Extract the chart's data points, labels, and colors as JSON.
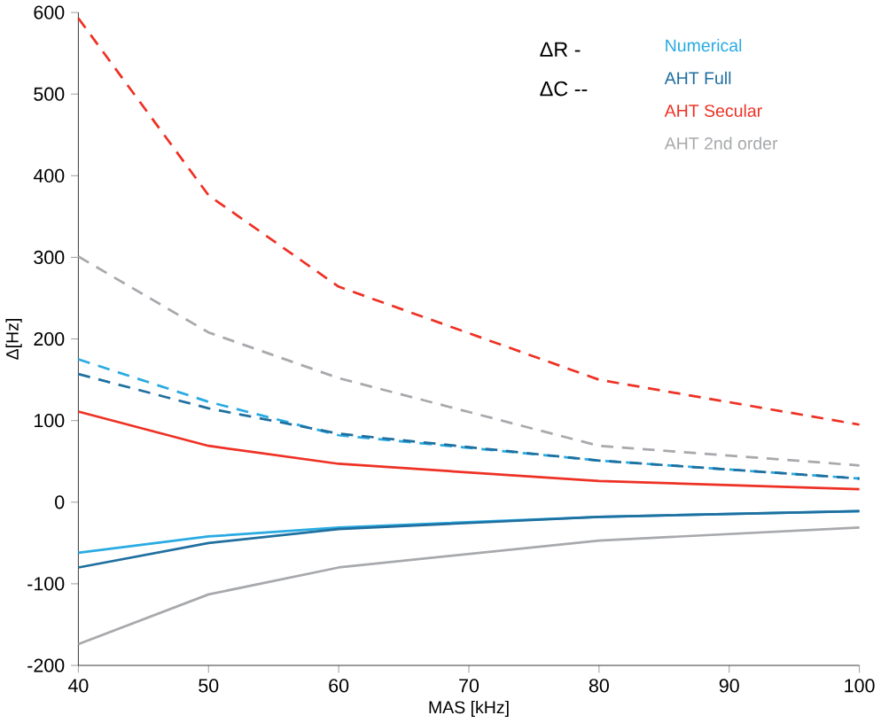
{
  "chart_data": {
    "type": "line",
    "xlabel": "MAS [kHz]",
    "ylabel": "Δ[Hz]",
    "x": [
      40,
      50,
      60,
      80,
      100
    ],
    "xlim": [
      40,
      100
    ],
    "xticks": [
      40,
      50,
      60,
      70,
      80,
      90,
      100
    ],
    "ylim": [
      -200,
      600
    ],
    "yticks": [
      -200,
      -100,
      0,
      100,
      200,
      300,
      400,
      500,
      600
    ],
    "grid": false,
    "legend": "top right",
    "marker": "none",
    "annotations": [
      "ΔR -",
      "ΔC --"
    ],
    "series": [
      {
        "name": "Numerical",
        "color": "#29abe2",
        "line_style": "solid",
        "values": [
          -62,
          -42,
          -31,
          -18,
          -11
        ]
      },
      {
        "name": "AHT Full",
        "color": "#1f6f9f",
        "line_style": "solid",
        "values": [
          -80,
          -50,
          -33,
          -18,
          -11
        ]
      },
      {
        "name": "AHT Secular",
        "color": "#ee3124",
        "line_style": "solid",
        "values": [
          111,
          69,
          47,
          26,
          16
        ]
      },
      {
        "name": "AHT 2nd order",
        "color": "#a7a9ac",
        "line_style": "solid",
        "values": [
          -174,
          -113,
          -80,
          -47,
          -31
        ]
      },
      {
        "color": "#29abe2",
        "line_style": "dashed",
        "values": [
          175,
          123,
          82,
          51,
          29
        ]
      },
      {
        "color": "#1f6f9f",
        "line_style": "dashed",
        "values": [
          157,
          115,
          84,
          51,
          29
        ]
      },
      {
        "color": "#ee3124",
        "line_style": "dashed",
        "values": [
          593,
          376,
          264,
          150,
          95
        ]
      },
      {
        "color": "#a7a9ac",
        "line_style": "dashed",
        "values": [
          301,
          208,
          152,
          69,
          45
        ]
      }
    ]
  }
}
